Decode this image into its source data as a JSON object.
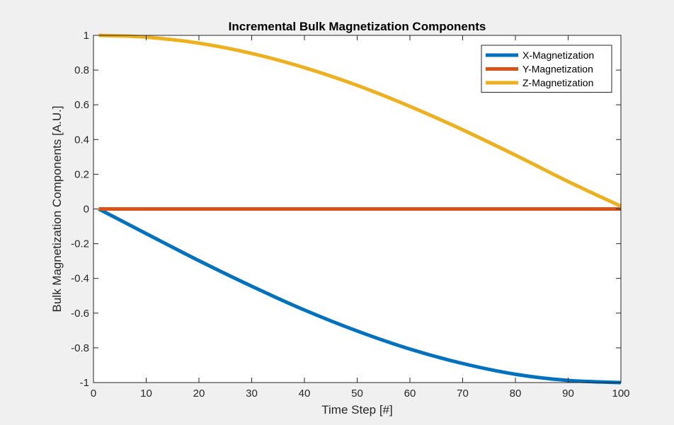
{
  "chart_data": {
    "type": "line",
    "title": "Incremental Bulk Magnetization Components",
    "xlabel": "Time Step [#]",
    "ylabel": "Bulk Magnetization Components [A.U.]",
    "xlim": [
      0,
      100
    ],
    "ylim": [
      -1,
      1
    ],
    "xticks": [
      0,
      10,
      20,
      30,
      40,
      50,
      60,
      70,
      80,
      90,
      100
    ],
    "yticks": [
      -1,
      -0.8,
      -0.6,
      -0.4,
      -0.2,
      0,
      0.2,
      0.4,
      0.6,
      0.8,
      1
    ],
    "xtick_labels": [
      "0",
      "10",
      "20",
      "30",
      "40",
      "50",
      "60",
      "70",
      "80",
      "90",
      "100"
    ],
    "ytick_labels": [
      "-1",
      "-0.8",
      "-0.6",
      "-0.4",
      "-0.2",
      "0",
      "0.2",
      "0.4",
      "0.6",
      "0.8",
      "1"
    ],
    "grid": false,
    "legend_position": "top-right",
    "x": [
      1,
      10,
      20,
      30,
      40,
      50,
      60,
      70,
      80,
      90,
      100
    ],
    "series": [
      {
        "name": "X-Magnetization",
        "color": "#0072BD",
        "values": [
          0,
          -0.142,
          -0.298,
          -0.445,
          -0.582,
          -0.703,
          -0.807,
          -0.89,
          -0.952,
          -0.988,
          -1.0
        ]
      },
      {
        "name": "Y-Magnetization",
        "color": "#D95319",
        "values": [
          0,
          0,
          0,
          0,
          0,
          0,
          0,
          0,
          0,
          0,
          0
        ]
      },
      {
        "name": "Z-Magnetization",
        "color": "#EDB120",
        "values": [
          1.0,
          0.99,
          0.955,
          0.896,
          0.814,
          0.712,
          0.591,
          0.456,
          0.31,
          0.158,
          0.016
        ]
      }
    ]
  }
}
